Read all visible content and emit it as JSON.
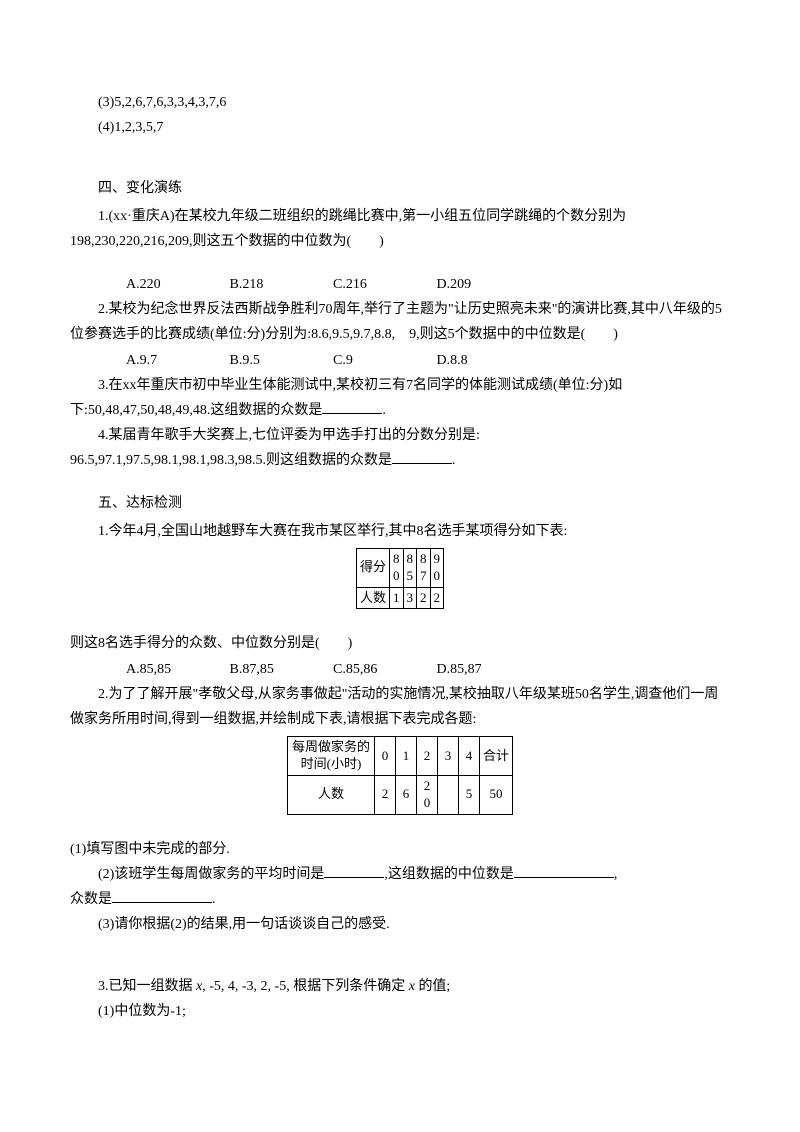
{
  "top": {
    "line3": "(3)5,2,6,7,6,3,3,4,3,7,6",
    "line4": "(4)1,2,3,5,7"
  },
  "sec4": {
    "title": "四、变化演练",
    "q1": "1.(xx·重庆A)在某校九年级二班组织的跳绳比赛中,第一小组五位同学跳绳的个数分别为198,230,220,216,209,则这五个数据的中位数为(　　)",
    "q1opts": {
      "a": "A.220",
      "b": "B.218",
      "c": "C.216",
      "d": "D.209"
    },
    "q2a": "2.某校为纪念世界反法西斯战争胜利70周年,举行了主题为\"让历史照亮未来\"的演讲比赛,其中八年级的5位参赛选手的比赛成绩(单位:分)分别为:8.6,9.5,9.7,8.8,　9,则这5个数据中的中位数是(　　)",
    "q2opts": {
      "a": "A.9.7",
      "b": "B.9.5",
      "c": "C.9",
      "d": "D.8.8"
    },
    "q3a": "3.在xx年重庆市初中毕业生体能测试中,某校初三有7名同学的体能测试成绩(单位:分)如下:50,48,47,50,48,49,48.这组数据的众数是",
    "q3b": ".",
    "q4a": "4.某届青年歌手大奖赛上,七位评委为甲选手打出的分数分别是:",
    "q4b": "96.5,97.1,97.5,98.1,98.1,98.3,98.5.则这组数据的众数是",
    "q4c": "."
  },
  "sec5": {
    "title": "五、达标检测",
    "q1": "1.今年4月,全国山地越野车大赛在我市某区举行,其中8名选手某项得分如下表:",
    "table1": {
      "row1hdr": "得分",
      "r1c1": "8",
      "r1c1b": "0",
      "r1c2": "8",
      "r1c2b": "5",
      "r1c3": "8",
      "r1c3b": "7",
      "r1c4": "9",
      "r1c4b": "0",
      "row2hdr": "人数",
      "r2c1": "1",
      "r2c2": "3",
      "r2c3": "2",
      "r2c4": "2"
    },
    "q1post": "则这8名选手得分的众数、中位数分别是(　　)",
    "q1opts": {
      "a": "A.85,85",
      "b": "B.87,85",
      "c": "C.85,86",
      "d": "D.85,87"
    },
    "q2": "2.为了了解开展\"孝敬父母,从家务事做起\"活动的实施情况,某校抽取八年级某班50名学生,调查他们一周做家务所用时间,得到一组数据,并绘制成下表,请根据下表完成各题:",
    "table2": {
      "row1hdr": "每周做家务的时间(小时)",
      "c0": "0",
      "c1": "1",
      "c2": "2",
      "c3": "3",
      "c4": "4",
      "c5": "合计",
      "row2hdr": "人数",
      "p0": "2",
      "p1": "6",
      "p2": "2",
      "p2b": "0",
      "p3": "",
      "p4": "5",
      "p5": "50"
    },
    "sub1": "(1)填写图中未完成的部分.",
    "sub2a": "(2)该班学生每周做家务的平均时间是",
    "sub2b": ",这组数据的中位数是",
    "sub2c": ",",
    "sub2d": "众数是",
    "sub2e": ".",
    "sub3": "(3)请你根据(2)的结果,用一句话谈谈自己的感受.",
    "q3a": "3.已知一组数据 ",
    "q3b": ", -5, 4, -3, 2, -5, 根据下列条件确定 ",
    "q3c": " 的值;",
    "q3s1": "(1)中位数为-1;",
    "x": "x"
  }
}
